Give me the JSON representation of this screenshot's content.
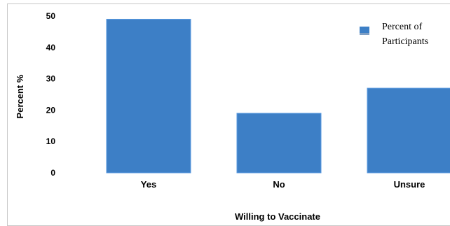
{
  "chart_data": {
    "type": "bar",
    "title": "",
    "xlabel": "Willing to Vaccinate",
    "ylabel": "Percent %",
    "categories": [
      "Yes",
      "No",
      "Unsure"
    ],
    "series": [
      {
        "name": "Percent of Participants",
        "values": [
          49,
          19,
          27
        ]
      }
    ],
    "ylim": [
      0,
      50
    ],
    "yticks": [
      0,
      10,
      20,
      30,
      40,
      50
    ],
    "grid": false,
    "legend_position": "top-right",
    "bar_color": "#3d7fc6",
    "bar_edge_color": "#5b9be0"
  },
  "legend": {
    "line1": "Percent of",
    "line2": "Participants"
  }
}
